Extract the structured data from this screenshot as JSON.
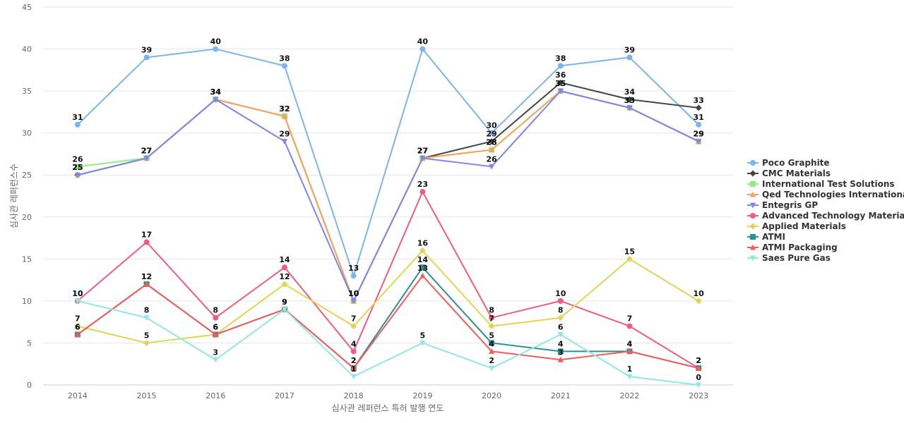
{
  "chart_data": {
    "type": "line",
    "title": "",
    "xlabel": "심사관 레퍼런스 특허 발행 연도",
    "ylabel": "심사관 레퍼런스수",
    "ylim": [
      0,
      45
    ],
    "yticks": [
      0,
      5,
      10,
      15,
      20,
      25,
      30,
      35,
      40,
      45
    ],
    "grid": true,
    "legend_position": "right",
    "categories": [
      "2014",
      "2015",
      "2016",
      "2017",
      "2018",
      "2019",
      "2020",
      "2021",
      "2022",
      "2023"
    ],
    "series": [
      {
        "name": "Poco Graphite",
        "color": "#7cb5ec",
        "marker": "circle",
        "values": [
          31,
          39,
          40,
          38,
          13,
          40,
          30,
          38,
          39,
          31
        ]
      },
      {
        "name": "CMC Materials",
        "color": "#434348",
        "marker": "diamond",
        "values": [
          25,
          27,
          34,
          32,
          10,
          27,
          29,
          36,
          34,
          33
        ]
      },
      {
        "name": "International Test Solutions",
        "color": "#90ed7d",
        "marker": "square",
        "values": [
          26,
          27,
          34,
          32,
          10,
          27,
          28,
          35,
          33,
          29
        ]
      },
      {
        "name": "Qed Technologies International",
        "color": "#f7a35c",
        "marker": "triangle",
        "values": [
          25,
          27,
          34,
          32,
          10,
          27,
          28,
          35,
          33,
          29
        ]
      },
      {
        "name": "Entegris GP",
        "color": "#8085e9",
        "marker": "triangle-down",
        "values": [
          25,
          27,
          34,
          29,
          10,
          27,
          26,
          35,
          33,
          29
        ]
      },
      {
        "name": "Advanced Technology Materials",
        "color": "#f15c80",
        "marker": "circle",
        "values": [
          10,
          17,
          8,
          14,
          4,
          23,
          8,
          10,
          7,
          2
        ]
      },
      {
        "name": "Applied Materials",
        "color": "#e4d354",
        "marker": "diamond",
        "values": [
          7,
          5,
          6,
          12,
          7,
          16,
          7,
          8,
          15,
          10
        ]
      },
      {
        "name": "ATMI",
        "color": "#2b908f",
        "marker": "square",
        "values": [
          6,
          12,
          6,
          9,
          2,
          14,
          5,
          4,
          4,
          2
        ]
      },
      {
        "name": "ATMI Packaging",
        "color": "#f45b5b",
        "marker": "triangle",
        "values": [
          6,
          12,
          6,
          9,
          2,
          13,
          4,
          3,
          4,
          2
        ]
      },
      {
        "name": "Saes Pure Gas",
        "color": "#91e8e1",
        "marker": "triangle-down",
        "values": [
          10,
          8,
          3,
          9,
          1,
          5,
          2,
          6,
          1,
          0
        ]
      }
    ]
  }
}
